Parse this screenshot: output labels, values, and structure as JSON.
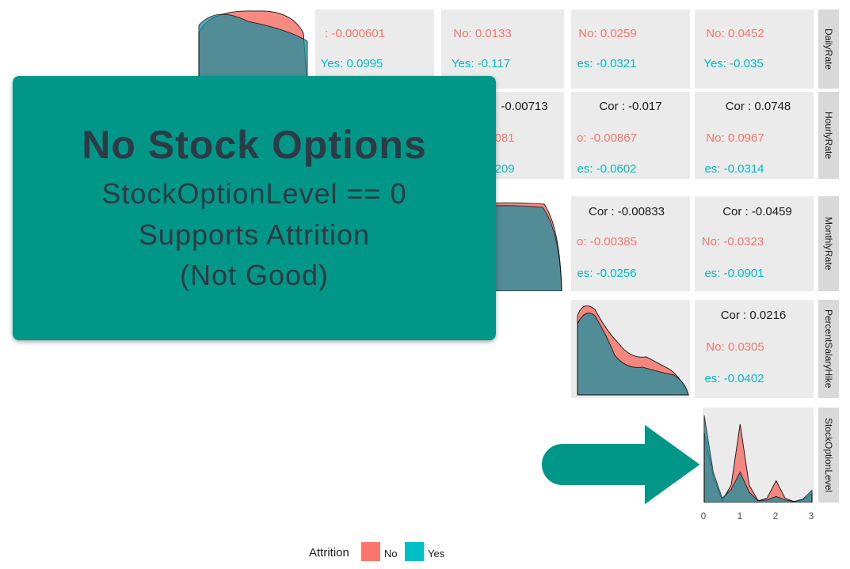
{
  "overlay": {
    "title": "No Stock Options",
    "line1": "StockOptionLevel == 0",
    "line2": "Supports Attrition",
    "line3": "(Not Good)"
  },
  "strips": [
    "DailyRate",
    "HourlyRate",
    "MonthlyRate",
    "PercentSalaryHike",
    "StockOptionLevel"
  ],
  "cells": {
    "dr1_no": ": -0.000601",
    "dr1_yes": "Yes: 0.0995",
    "dr2_no": "No: 0.0133",
    "dr2_yes": "Yes: -0.117",
    "dr3_no": "No: 0.0259",
    "dr3_yes": "es: -0.0321",
    "dr4_no": "No: 0.0452",
    "dr4_yes": "Yes: -0.035",
    "hr2_cor": "-0.00713",
    "hr2_no": "081",
    "hr2_yes": "209",
    "hr3_cor": "Cor : -0.017",
    "hr3_no": "o: -0.00867",
    "hr3_yes": "es: -0.0602",
    "hr4_cor": "Cor : 0.0748",
    "hr4_no": "No: 0.0967",
    "hr4_yes": "es: -0.0314",
    "mr3_cor": "Cor : -0.00833",
    "mr3_no": "o: -0.00385",
    "mr3_yes": "es: -0.0256",
    "mr4_cor": "Cor : -0.0459",
    "mr4_no": "No: -0.0323",
    "mr4_yes": "es: -0.0901",
    "ps4_cor": "Cor : 0.0216",
    "ps4_no": "No: 0.0305",
    "ps4_yes": "es: -0.0402"
  },
  "colors": {
    "no": "#f8766d",
    "yes": "#00bfc4",
    "overlay": "#009688",
    "arrow": "#009688"
  },
  "legend": {
    "title": "Attrition",
    "no": "No",
    "yes": "Yes"
  },
  "chart_data": {
    "type": "area",
    "xlabel": "",
    "ylabel": "",
    "x": [
      0,
      0.25,
      0.5,
      0.75,
      1,
      1.25,
      1.5,
      1.75,
      2,
      2.25,
      2.5,
      2.75,
      3
    ],
    "xticks": [
      "0",
      "1",
      "2",
      "3"
    ],
    "xlim": [
      0,
      3
    ],
    "series": [
      {
        "name": "No",
        "values": [
          0.8,
          0.3,
          0.02,
          0.2,
          0.9,
          0.2,
          0.02,
          0.05,
          0.25,
          0.05,
          0.01,
          0.03,
          0.1
        ]
      },
      {
        "name": "Yes",
        "values": [
          1.0,
          0.35,
          0.05,
          0.15,
          0.35,
          0.12,
          0.02,
          0.03,
          0.07,
          0.03,
          0.01,
          0.04,
          0.14
        ]
      }
    ],
    "legend_position": "bottom"
  }
}
